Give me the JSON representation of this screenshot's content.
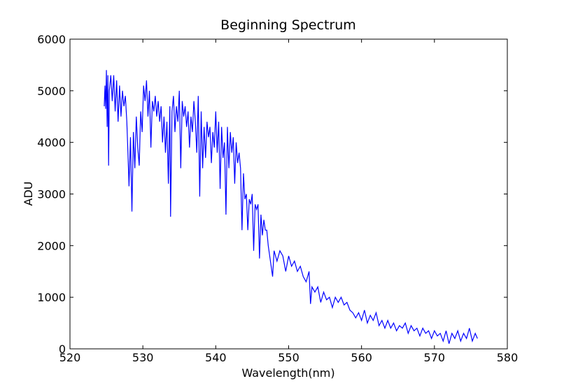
{
  "chart_data": {
    "type": "line",
    "title": "Beginning Spectrum",
    "x_label": "Wavelength(nm)",
    "y_label": "ADU",
    "xlim": [
      520,
      580
    ],
    "ylim": [
      0,
      6000
    ],
    "xticks": [
      520,
      530,
      540,
      550,
      560,
      570,
      580
    ],
    "yticks": [
      0,
      1000,
      2000,
      3000,
      4000,
      5000,
      6000
    ],
    "color": "#0000ff",
    "x": [
      524.7,
      524.8,
      524.9,
      525.0,
      525.1,
      525.2,
      525.3,
      525.4,
      525.6,
      525.8,
      526.0,
      526.2,
      526.4,
      526.6,
      526.8,
      527.0,
      527.2,
      527.4,
      527.6,
      527.8,
      528.0,
      528.1,
      528.3,
      528.5,
      528.7,
      528.9,
      529.1,
      529.3,
      529.5,
      529.7,
      529.9,
      530.1,
      530.3,
      530.5,
      530.7,
      530.9,
      531.1,
      531.3,
      531.5,
      531.7,
      531.9,
      532.1,
      532.3,
      532.5,
      532.7,
      532.9,
      533.1,
      533.3,
      533.5,
      533.7,
      533.8,
      534.0,
      534.2,
      534.4,
      534.6,
      534.8,
      535.0,
      535.2,
      535.4,
      535.6,
      535.8,
      536.0,
      536.2,
      536.4,
      536.6,
      536.8,
      537.0,
      537.2,
      537.4,
      537.6,
      537.8,
      538.0,
      538.2,
      538.4,
      538.6,
      538.8,
      539.0,
      539.2,
      539.4,
      539.6,
      539.8,
      540.0,
      540.2,
      540.4,
      540.6,
      540.8,
      541.0,
      541.2,
      541.4,
      541.6,
      541.8,
      542.0,
      542.2,
      542.4,
      542.6,
      542.8,
      543.0,
      543.2,
      543.4,
      543.6,
      543.8,
      544.0,
      544.2,
      544.4,
      544.6,
      544.8,
      545.0,
      545.2,
      545.4,
      545.6,
      545.8,
      546.0,
      546.2,
      546.4,
      546.6,
      546.8,
      547.0,
      547.2,
      547.4,
      547.8,
      548.0,
      548.4,
      548.8,
      549.2,
      549.6,
      550.0,
      550.4,
      550.8,
      551.2,
      551.6,
      552.0,
      552.4,
      552.8,
      553.0,
      553.2,
      553.6,
      554.0,
      554.4,
      554.8,
      555.2,
      555.6,
      556.0,
      556.4,
      556.8,
      557.2,
      557.6,
      558.0,
      558.4,
      558.8,
      559.2,
      559.6,
      560.0,
      560.4,
      560.8,
      561.2,
      561.6,
      562.0,
      562.4,
      562.8,
      563.2,
      563.6,
      564.0,
      564.4,
      564.8,
      565.2,
      565.6,
      566.0,
      566.4,
      566.8,
      567.2,
      567.6,
      568.0,
      568.4,
      568.8,
      569.2,
      569.6,
      570.0,
      570.4,
      570.8,
      571.2,
      571.6,
      572.0,
      572.4,
      572.8,
      573.2,
      573.6,
      574.0,
      574.4,
      574.8,
      575.2,
      575.6,
      575.9
    ],
    "values": [
      4700,
      5100,
      4650,
      5400,
      4300,
      5300,
      3550,
      5000,
      5300,
      4800,
      5300,
      4600,
      5200,
      4400,
      5100,
      4500,
      5000,
      4700,
      4900,
      4400,
      3600,
      3150,
      4100,
      2660,
      4200,
      3500,
      4500,
      3900,
      3550,
      4600,
      4200,
      5100,
      4800,
      5200,
      4500,
      5000,
      3900,
      4800,
      4600,
      4900,
      4500,
      4800,
      4400,
      4700,
      4000,
      4500,
      3800,
      4400,
      3200,
      4700,
      2560,
      4600,
      4900,
      4200,
      4700,
      4400,
      5000,
      3500,
      4800,
      4500,
      4700,
      4300,
      4600,
      3900,
      4500,
      4200,
      4800,
      4400,
      3800,
      4900,
      2950,
      4600,
      3500,
      4300,
      3700,
      4400,
      4100,
      4300,
      3600,
      4200,
      3900,
      4600,
      3800,
      4400,
      3100,
      4300,
      3700,
      4000,
      2600,
      4300,
      3500,
      4200,
      3800,
      4100,
      3200,
      4000,
      3600,
      3800,
      3500,
      2300,
      3400,
      2900,
      3000,
      2300,
      2900,
      2800,
      3000,
      1900,
      2800,
      2700,
      2800,
      1750,
      2600,
      2200,
      2500,
      2300,
      2300,
      2000,
      1800,
      1400,
      1900,
      1700,
      1900,
      1800,
      1500,
      1800,
      1600,
      1700,
      1500,
      1600,
      1400,
      1300,
      1500,
      870,
      1200,
      1100,
      1200,
      900,
      1100,
      950,
      1000,
      800,
      1000,
      900,
      1000,
      850,
      900,
      750,
      700,
      600,
      700,
      550,
      750,
      500,
      650,
      550,
      700,
      450,
      550,
      400,
      550,
      400,
      500,
      350,
      450,
      400,
      500,
      300,
      450,
      350,
      400,
      250,
      400,
      300,
      350,
      200,
      350,
      250,
      300,
      150,
      350,
      100,
      300,
      200,
      350,
      150,
      300,
      200,
      400,
      150,
      300,
      200
    ]
  }
}
